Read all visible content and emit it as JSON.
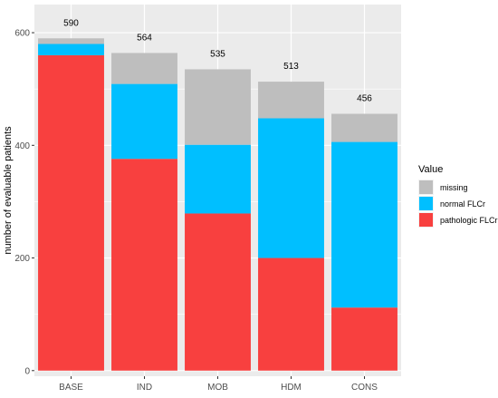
{
  "chart_data": {
    "type": "bar",
    "stacked": true,
    "categories": [
      "BASE",
      "IND",
      "MOB",
      "HDM",
      "CONS"
    ],
    "series": [
      {
        "name": "pathologic FLCr",
        "color": "#F8403F",
        "values": [
          560,
          376,
          279,
          200,
          112
        ]
      },
      {
        "name": "normal FLCr",
        "color": "#00BFFF",
        "values": [
          20,
          133,
          122,
          248,
          294
        ]
      },
      {
        "name": "missing",
        "color": "#BEBEBE",
        "values": [
          10,
          55,
          134,
          65,
          50
        ]
      }
    ],
    "totals": [
      590,
      564,
      535,
      513,
      456
    ],
    "total_labels": [
      "590",
      "564",
      "535",
      "513",
      "456"
    ],
    "xlabel": "",
    "ylabel": "number of evaluable patients",
    "ylim": [
      -10,
      650
    ],
    "yticks": [
      0,
      200,
      400,
      600
    ],
    "ytick_labels": [
      "0",
      "200",
      "400",
      "600"
    ],
    "legend": {
      "title": "Value",
      "placement": "right",
      "entries": [
        "missing",
        "normal FLCr",
        "pathologic FLCr"
      ]
    },
    "grid": true,
    "panel_background": "#EBEBEB"
  }
}
